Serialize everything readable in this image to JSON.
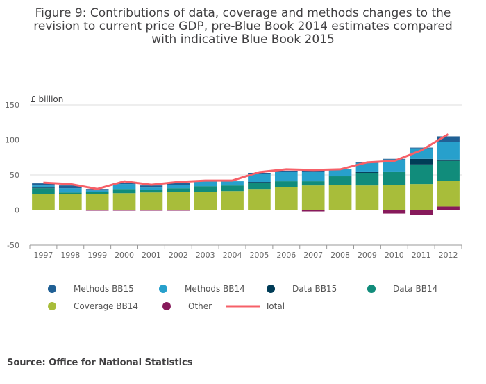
{
  "chart_data": {
    "type": "bar",
    "stacked": true,
    "title": "Figure 9: Contributions of data, coverage and methods changes to the revision to current price GDP, pre-Blue Book 2014 estimates compared with indicative Blue Book 2015",
    "y_label": "£ billion",
    "source": "Source: Office for National Statistics",
    "categories": [
      "1997",
      "1998",
      "1999",
      "2000",
      "2001",
      "2002",
      "2003",
      "2004",
      "2005",
      "2006",
      "2007",
      "2008",
      "2009",
      "2010",
      "2011",
      "2012"
    ],
    "series": [
      {
        "name": "Methods BB15",
        "color": "#206095",
        "values": [
          3,
          4,
          2,
          2,
          3,
          3,
          0,
          0,
          2,
          2,
          3,
          0,
          1,
          1,
          1,
          8
        ]
      },
      {
        "name": "Methods BB14",
        "color": "#27a0cc",
        "values": [
          3,
          6,
          2,
          7,
          3,
          5,
          7,
          6,
          11,
          13,
          13,
          10,
          12,
          17,
          15,
          25
        ]
      },
      {
        "name": "Data BB15",
        "color": "#003c57",
        "values": [
          1,
          0,
          0,
          0,
          0,
          0,
          0,
          0,
          1,
          0,
          0,
          0,
          2,
          1,
          8,
          2
        ]
      },
      {
        "name": "Data BB14",
        "color": "#118c7b",
        "values": [
          8,
          2,
          3,
          6,
          4,
          5,
          8,
          8,
          9,
          8,
          6,
          12,
          18,
          18,
          28,
          28
        ]
      },
      {
        "name": "Coverage BB14",
        "color": "#a8bd3a",
        "values": [
          23,
          23,
          23,
          24,
          25,
          26,
          26,
          27,
          30,
          33,
          35,
          36,
          35,
          36,
          37,
          37
        ]
      },
      {
        "name": "Other",
        "color": "#871a5b",
        "values": [
          0,
          0,
          -1,
          -1,
          -1,
          -1,
          0,
          0,
          0,
          0,
          -2,
          0,
          0,
          -5,
          -7,
          5
        ]
      },
      {
        "name": "Total",
        "color": "#f66068",
        "type": "line",
        "values": [
          39,
          37,
          30,
          41,
          36,
          40,
          42,
          42,
          54,
          58,
          57,
          58,
          68,
          70,
          85,
          108
        ]
      }
    ],
    "ylim": [
      -50,
      150
    ],
    "yticks": [
      -50,
      0,
      50,
      100,
      150
    ],
    "grid": true
  }
}
